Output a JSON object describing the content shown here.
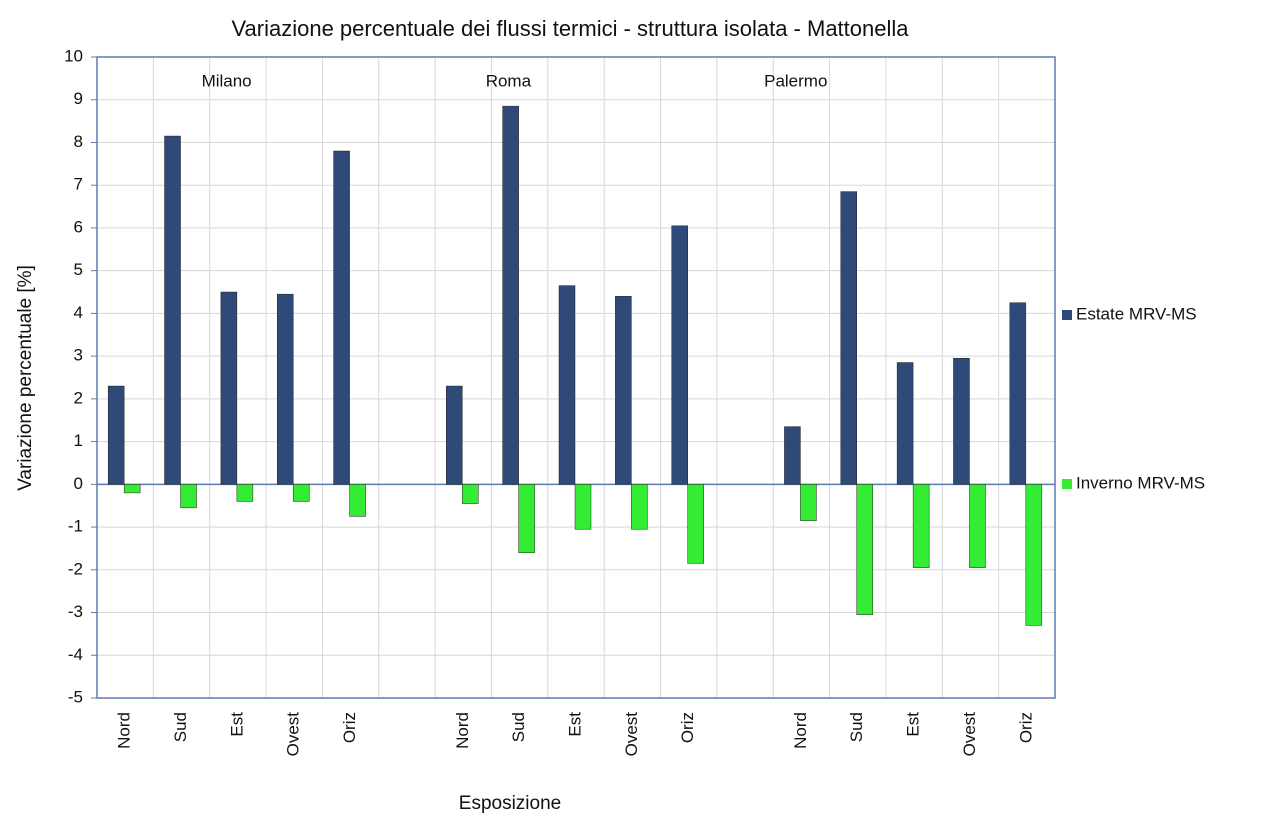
{
  "chart_data": {
    "type": "bar",
    "title": "Variazione  percentuale dei flussi termici - struttura isolata - Mattonella",
    "x_label": "Esposizione",
    "y_label": "Variazione  percentuale [%]",
    "annotations": [
      "Milano",
      "Roma",
      "Palermo"
    ],
    "categories": [
      "Nord",
      "Sud",
      "Est",
      "Ovest",
      "Oriz",
      null,
      "Nord",
      "Sud",
      "Est",
      "Ovest",
      "Oriz",
      null,
      "Nord",
      "Sud",
      "Est",
      "Ovest",
      "Oriz"
    ],
    "series": [
      {
        "name": "Estate MRV-MS",
        "color": "#2f4a78",
        "values": [
          2.3,
          8.15,
          4.5,
          4.45,
          7.8,
          null,
          2.3,
          8.85,
          4.65,
          4.4,
          6.05,
          null,
          1.35,
          6.85,
          2.85,
          2.95,
          4.25
        ]
      },
      {
        "name": "Inverno MRV-MS",
        "color": "#35ec35",
        "values": [
          -0.2,
          -0.55,
          -0.4,
          -0.4,
          -0.75,
          null,
          -0.45,
          -1.6,
          -1.05,
          -1.05,
          -1.85,
          null,
          -0.85,
          -3.05,
          -1.95,
          -1.95,
          -3.3
        ]
      }
    ],
    "ylim": [
      -5,
      10
    ],
    "yticks": [
      -5,
      -4,
      -3,
      -2,
      -1,
      0,
      1,
      2,
      3,
      4,
      5,
      6,
      7,
      8,
      9,
      10
    ],
    "grid": true
  }
}
